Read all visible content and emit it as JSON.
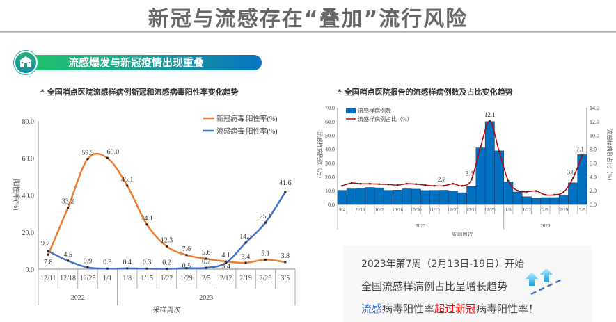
{
  "header": {
    "title": "新冠与流感存在“叠加”流行风险"
  },
  "section": {
    "banner": "流感爆发与新冠疫情出现重叠",
    "icon": "hospital-icon"
  },
  "left_subtitle": "* 全国哨点医院流感样病例新冠和流感病毒阳性率变化趋势",
  "right_subtitle": "* 全国哨点医院报告的流感样病例数及占比变化趋势",
  "callout": {
    "line1": "2023年第7周（2月13日-19日）开始",
    "line2": "全国流感样病例占比呈增长趋势",
    "line3_a": "流感",
    "line3_b": "病毒阳性率",
    "line3_c": "超过新冠",
    "line3_d": "病毒阳性率！",
    "icon": "up-arrows-icon"
  },
  "chart_data": [
    {
      "type": "line",
      "categories": [
        "12/11",
        "12/18",
        "12/25",
        "1/1",
        "1/8",
        "1/15",
        "1/22",
        "1/29",
        "2/5",
        "2/12",
        "2/19",
        "2/26",
        "3/5"
      ],
      "groups": [
        {
          "label": "2022",
          "count": 4
        },
        {
          "label": "2023",
          "count": 9
        }
      ],
      "series": [
        {
          "name": "新冠病毒 阳性率(%)",
          "color": "#ed7d31",
          "values": [
            7.8,
            33.2,
            59.5,
            60.0,
            45.1,
            24.1,
            12.3,
            7.6,
            5.6,
            4.1,
            3.4,
            5.1,
            3.8
          ]
        },
        {
          "name": "流感病毒 阳性率(%)",
          "color": "#4472c4",
          "values": [
            9.7,
            4.5,
            0.9,
            0.3,
            0.4,
            0.3,
            0.2,
            0.5,
            0.7,
            3.4,
            14.3,
            25.1,
            41.6
          ]
        }
      ],
      "ylabel": "阳性率(%)",
      "xlabel": "采样周次",
      "ylim": [
        0,
        80
      ],
      "yticks": [
        "0.0",
        "20.0",
        "40.0",
        "60.0",
        "80.0"
      ],
      "legend": "top-right"
    },
    {
      "type": "bar+line",
      "categories": [
        "9/4",
        "9/11",
        "9/18",
        "9/25",
        "10/2",
        "10/9",
        "10/16",
        "10/23",
        "10/30",
        "11/6",
        "11/13",
        "11/20",
        "11/27",
        "12/4",
        "12/11",
        "12/18",
        "12/25",
        "1/1",
        "1/8",
        "1/15",
        "1/22",
        "1/29",
        "2/5",
        "2/12",
        "2/19",
        "2/26",
        "3/5"
      ],
      "shown_ticks": [
        "9/4",
        "9/18",
        "10/2",
        "10/16",
        "10/30",
        "11/13",
        "11/27",
        "12/11",
        "12/25",
        "1/8",
        "1/22",
        "2/5",
        "2/19",
        "3/5"
      ],
      "groups": [
        {
          "label": "2022",
          "count": 18
        },
        {
          "label": "2023",
          "count": 9
        }
      ],
      "series": [
        {
          "name": "流感样病例数",
          "color": "#0070c0",
          "axis": "left",
          "values": [
            10.2,
            11.3,
            11.8,
            12.3,
            12.0,
            10.2,
            10.4,
            11.3,
            11.1,
            10.1,
            10.2,
            10.3,
            9.8,
            8.5,
            13.0,
            41.0,
            60.0,
            38.8,
            16.3,
            9.0,
            5.6,
            4.6,
            5.0,
            5.0,
            6.8,
            15.7,
            36.0
          ]
        },
        {
          "name": "流感样病例占比（%）",
          "color": "#c00000",
          "axis": "right",
          "values": [
            2.7,
            3.1,
            3.0,
            3.0,
            2.95,
            2.9,
            2.8,
            3.0,
            2.95,
            2.8,
            2.7,
            2.7,
            3.0,
            2.7,
            3.6,
            8.4,
            12.1,
            7.7,
            3.4,
            2.0,
            1.85,
            1.95,
            1.4,
            1.4,
            1.8,
            3.8,
            7.1
          ]
        }
      ],
      "data_labels": [
        {
          "index": 11,
          "text": "2.7"
        },
        {
          "index": 14,
          "text": "3.6"
        },
        {
          "index": 16,
          "text": "12.1"
        },
        {
          "index": 25,
          "text": "3.8"
        },
        {
          "index": 26,
          "text": "7.1"
        }
      ],
      "ylabel": "流感样病例数（万）",
      "y2label": "流感样病例占比（%）",
      "xlabel": "监测周次",
      "ylim": [
        0,
        70
      ],
      "y2lim": [
        0,
        14
      ],
      "yticks": [
        "0.0",
        "10.0",
        "20.0",
        "30.0",
        "40.0",
        "50.0",
        "60.0",
        "70.0"
      ],
      "y2ticks": [
        "0.0",
        "2.0",
        "4.0",
        "6.0",
        "8.0",
        "10.0",
        "12.0",
        "14.0"
      ],
      "legend": "top-left"
    }
  ]
}
